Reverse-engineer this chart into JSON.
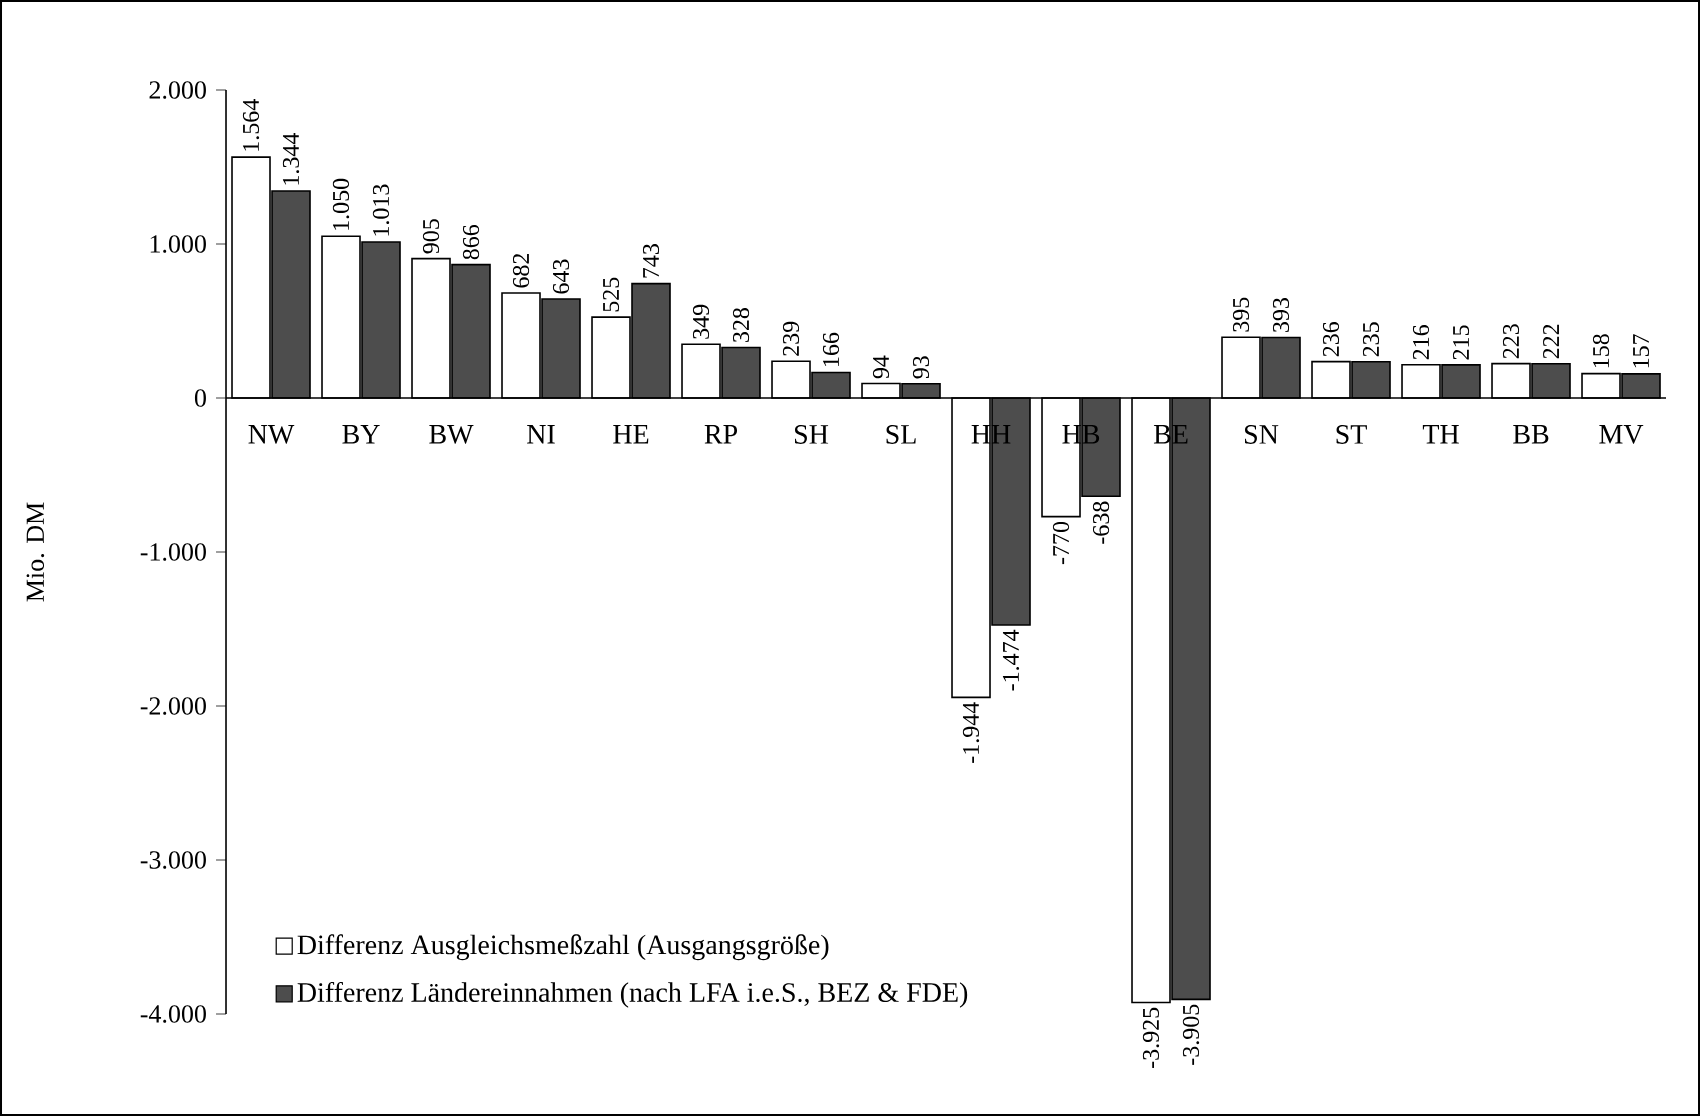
{
  "chart_data": {
    "type": "bar",
    "ylabel": "Mio. DM",
    "categories": [
      "NW",
      "BY",
      "BW",
      "NI",
      "HE",
      "RP",
      "SH",
      "SL",
      "HH",
      "HB",
      "BE",
      "SN",
      "ST",
      "TH",
      "BB",
      "MV"
    ],
    "series": [
      {
        "name": "Differenz Ausgleichsmeßzahl (Ausgangsgröße)",
        "color": "#ffffff",
        "values": [
          1564,
          1050,
          905,
          682,
          525,
          349,
          239,
          94,
          -1944,
          -770,
          -3925,
          395,
          236,
          216,
          223,
          158
        ],
        "value_labels": [
          "1.564",
          "1.050",
          "905",
          "682",
          "525",
          "349",
          "239",
          "94",
          "-1.944",
          "-770",
          "-3.925",
          "395",
          "236",
          "216",
          "223",
          "158"
        ]
      },
      {
        "name": "Differenz Ländereinnahmen (nach LFA i.e.S., BEZ & FDE)",
        "color": "#4d4d4d",
        "values": [
          1344,
          1013,
          866,
          643,
          743,
          328,
          166,
          93,
          -1474,
          -638,
          -3905,
          393,
          235,
          215,
          222,
          157
        ],
        "value_labels": [
          "1.344",
          "1.013",
          "866",
          "643",
          "743",
          "328",
          "166",
          "93",
          "-1.474",
          "-638",
          "-3.905",
          "393",
          "235",
          "215",
          "222",
          "157"
        ]
      }
    ],
    "ylim": [
      -4000,
      2000
    ],
    "yticks": [
      {
        "value": -4000,
        "label": "-4.000"
      },
      {
        "value": -3000,
        "label": "-3.000"
      },
      {
        "value": -2000,
        "label": "-2.000"
      },
      {
        "value": -1000,
        "label": "-1.000"
      },
      0,
      {
        "value": 1000,
        "label": "1.000"
      },
      {
        "value": 2000,
        "label": "2.000"
      }
    ],
    "legend": "bottom left",
    "grid": false
  }
}
